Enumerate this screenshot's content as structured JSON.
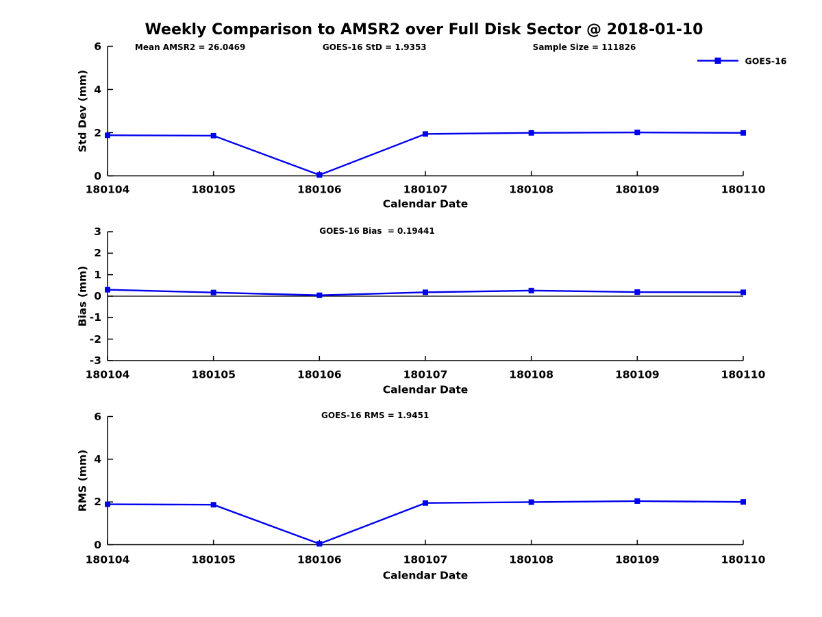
{
  "figure": {
    "title": "Weekly Comparison to AMSR2 over Full Disk Sector @ 2018-01-10",
    "background_color": "#ffffff",
    "line_color": "#0000ee",
    "axis_color": "#000000",
    "legend": {
      "label": "GOES-16",
      "position": "top-right",
      "marker": "filled-square"
    }
  },
  "chart_data": [
    {
      "type": "line",
      "ylabel": "Std Dev (mm)",
      "xlabel": "Calendar Date",
      "annotations": [
        "Mean AMSR2 = 26.0469",
        "GOES-16 StD = 1.9353",
        "Sample Size = 111826"
      ],
      "categories": [
        "180104",
        "180105",
        "180106",
        "180107",
        "180108",
        "180109",
        "180110"
      ],
      "series": [
        {
          "name": "GOES-16",
          "values": [
            1.88,
            1.86,
            0.04,
            1.94,
            1.99,
            2.01,
            1.99
          ]
        }
      ],
      "ylim": [
        0,
        6
      ],
      "yticks": [
        0,
        2,
        4,
        6
      ],
      "grid": false,
      "zero_line": false,
      "legend_visible": true
    },
    {
      "type": "line",
      "ylabel": "Bias (mm)",
      "xlabel": "Calendar Date",
      "annotations": [
        "GOES-16 Bias  = 0.19441"
      ],
      "categories": [
        "180104",
        "180105",
        "180106",
        "180107",
        "180108",
        "180109",
        "180110"
      ],
      "series": [
        {
          "name": "GOES-16",
          "values": [
            0.3,
            0.17,
            0.04,
            0.18,
            0.26,
            0.19,
            0.18
          ]
        }
      ],
      "ylim": [
        -3,
        3
      ],
      "yticks": [
        -3,
        -2,
        -1,
        0,
        1,
        2,
        3
      ],
      "grid": false,
      "zero_line": true,
      "legend_visible": false
    },
    {
      "type": "line",
      "ylabel": "RMS (mm)",
      "xlabel": "Calendar Date",
      "annotations": [
        "GOES-16 RMS = 1.9451"
      ],
      "categories": [
        "180104",
        "180105",
        "180106",
        "180107",
        "180108",
        "180109",
        "180110"
      ],
      "series": [
        {
          "name": "GOES-16",
          "values": [
            1.89,
            1.87,
            0.04,
            1.95,
            1.99,
            2.04,
            2.0
          ]
        }
      ],
      "ylim": [
        0,
        6
      ],
      "yticks": [
        0,
        2,
        4,
        6
      ],
      "grid": false,
      "zero_line": false,
      "legend_visible": false
    }
  ]
}
